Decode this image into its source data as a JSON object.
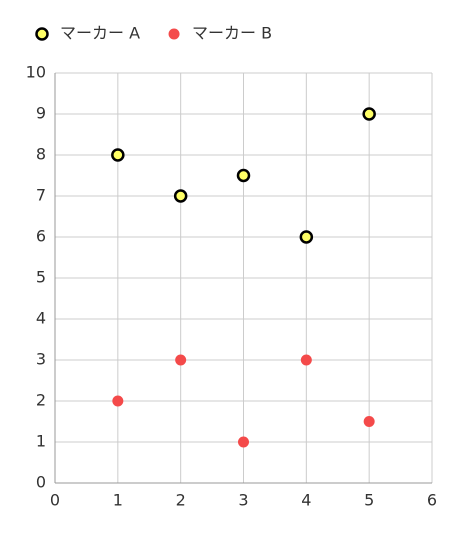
{
  "chart_data": {
    "type": "scatter",
    "series": [
      {
        "name": "マーカー A",
        "color": "#ffff66",
        "edge_color": "#000000",
        "x": [
          1,
          2,
          3,
          4,
          5
        ],
        "values": [
          8,
          7,
          7.5,
          6,
          9
        ]
      },
      {
        "name": "マーカー B",
        "color": "#f44a4a",
        "x": [
          1,
          2,
          3,
          4,
          5
        ],
        "values": [
          2,
          3,
          1,
          3,
          1.5
        ]
      }
    ],
    "xlim": [
      0,
      6
    ],
    "xticks": [
      0,
      1,
      2,
      3,
      4,
      5,
      6
    ],
    "ylim": [
      0,
      10
    ],
    "yticks": [
      0,
      1,
      2,
      3,
      4,
      5,
      6,
      7,
      8,
      9,
      10
    ],
    "grid": true,
    "legend": "top"
  }
}
